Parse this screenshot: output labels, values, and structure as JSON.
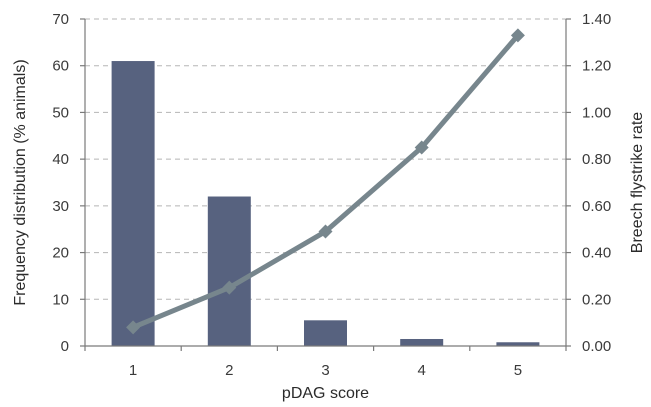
{
  "chart_data": {
    "type": "bar+line",
    "categories": [
      "1",
      "2",
      "3",
      "4",
      "5"
    ],
    "xlabel": "pDAG score",
    "ylabel": "Frequency distribution (% animals)",
    "y2label": "Breech flystrike rate",
    "ylim": [
      0,
      70
    ],
    "y2lim": [
      0,
      1.4
    ],
    "yticks": [
      "0",
      "10",
      "20",
      "30",
      "40",
      "50",
      "60",
      "70"
    ],
    "y2ticks": [
      "0.00",
      "0.20",
      "0.40",
      "0.60",
      "0.80",
      "1.00",
      "1.20",
      "1.40"
    ],
    "grid": true,
    "series": [
      {
        "type": "bar",
        "axis": "left",
        "values": [
          61,
          32,
          5.5,
          1.5,
          0.8
        ],
        "color": "#57627f"
      },
      {
        "type": "line",
        "axis": "right",
        "marker": "diamond",
        "values": [
          0.08,
          0.25,
          0.49,
          0.85,
          1.33
        ],
        "color": "#77868d"
      }
    ]
  }
}
